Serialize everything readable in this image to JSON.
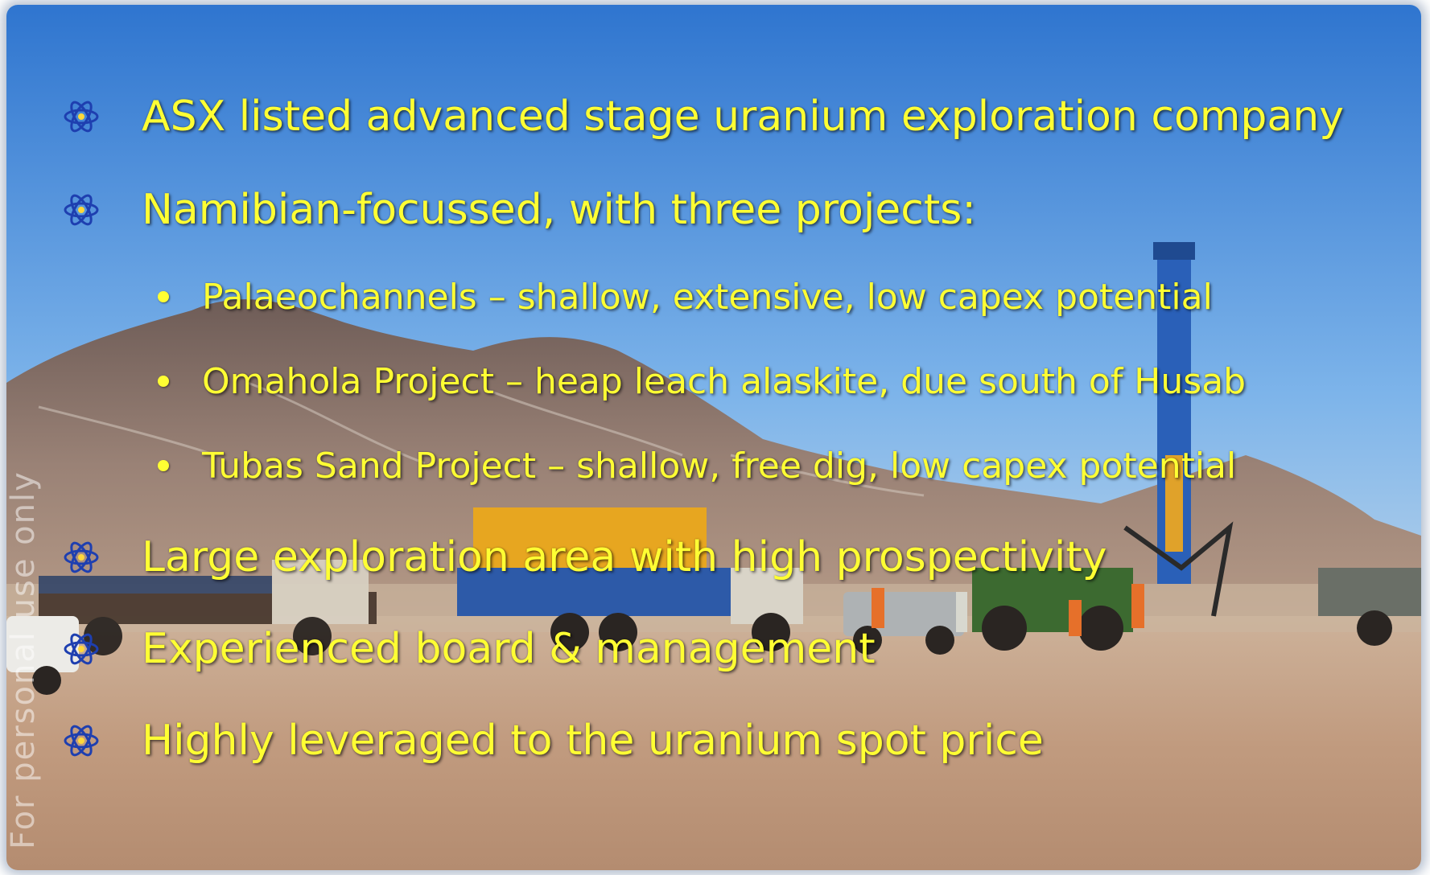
{
  "slide": {
    "watermark_text": "For personal use only",
    "background": "photo of uranium drilling rigs and vehicles in Namibian desert under blue sky",
    "bullets": [
      {
        "level": 1,
        "icon": "atom-icon",
        "text": "ASX listed advanced stage uranium exploration company"
      },
      {
        "level": 1,
        "icon": "atom-icon",
        "text": "Namibian-focussed, with three projects:"
      },
      {
        "level": 2,
        "icon": "bullet-dot-icon",
        "text": "Palaeochannels – shallow, extensive, low capex potential"
      },
      {
        "level": 2,
        "icon": "bullet-dot-icon",
        "text": "Omahola Project – heap leach alaskite, due south of Husab"
      },
      {
        "level": 2,
        "icon": "bullet-dot-icon",
        "text": "Tubas Sand Project – shallow, free dig, low capex potential"
      },
      {
        "level": 1,
        "icon": "atom-icon",
        "text": "Large exploration area with high prospectivity"
      },
      {
        "level": 1,
        "icon": "atom-icon",
        "text": "Experienced board & management"
      },
      {
        "level": 1,
        "icon": "atom-icon",
        "text": "Highly leveraged to the uranium spot price"
      }
    ]
  },
  "colors": {
    "text": "#ffff33",
    "sky_top": "#3a7fd0",
    "ground": "#c9a98a"
  }
}
